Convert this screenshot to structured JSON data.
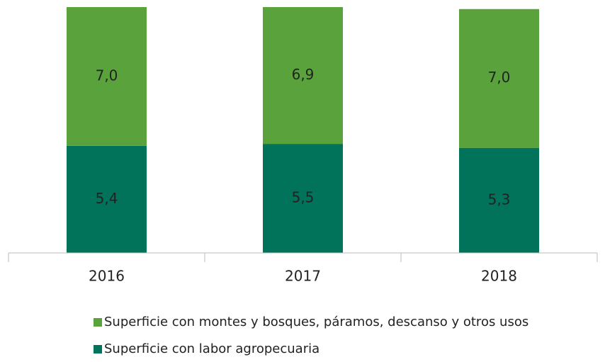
{
  "chart_data": {
    "type": "stacked_bar",
    "categories": [
      "2016",
      "2017",
      "2018"
    ],
    "series": [
      {
        "name": "Superficie con labor agropecuaria",
        "color": "#00735a",
        "values": [
          5.4,
          5.5,
          5.3
        ],
        "value_labels": [
          "5,4",
          "5,5",
          "5,3"
        ]
      },
      {
        "name": "Superficie con montes y bosques, páramos, descanso y otros usos",
        "color": "#5aa33c",
        "values": [
          7.0,
          6.9,
          7.0
        ],
        "value_labels": [
          "7,0",
          "6,9",
          "7,0"
        ]
      }
    ]
  }
}
